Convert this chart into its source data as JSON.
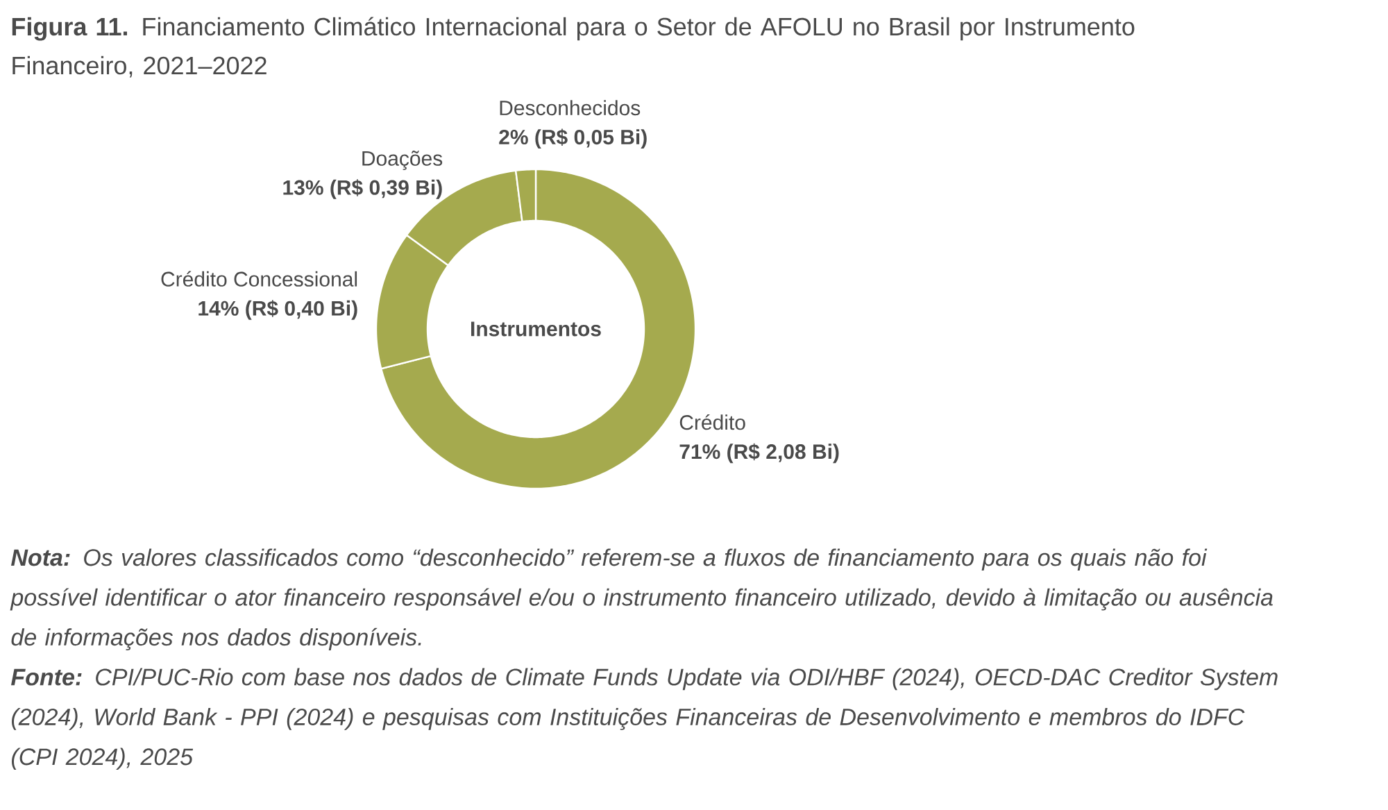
{
  "chart_data": {
    "type": "donut",
    "title": "**Figura 11.** Financiamento Climático Internacional para o Setor de AFOLU no Brasil por Instrumento Financeiro, 2021–2022",
    "categories": [
      "Crédito",
      "Crédito Concessional",
      "Doações",
      "Desconhecidos"
    ],
    "values": [
      71,
      14,
      13,
      2
    ],
    "colors": [
      "#a5aa4e",
      "#a5aa4e",
      "#a5aa4e",
      "#a5aa4e"
    ],
    "value_labels": [
      "71% (R$ 2,08 Bi)",
      "14% (R$ 0,40 Bi)",
      "13% (R$ 0,39 Bi)",
      "2% (R$ 0,05 Bi)"
    ],
    "annotations": [
      "Instrumentos",
      "**Nota:** Os valores classificados como “desconhecido” referem-se a fluxos de financiamento para os quais não foi possível identificar o ator financeiro responsável e/ou o instrumento financeiro utilizado, devido à limitação ou ausência de informações nos dados disponíveis.",
      "**Fonte:** CPI/PUC-Rio com base nos dados de Climate Funds Update via ODI/HBF (2024), OECD-DAC Creditor System (2024), World Bank - PPI (2024) e pesquisas com Instituições Financeiras de Desenvolvimento e membros do IDFC (CPI 2024), 2025"
    ]
  }
}
